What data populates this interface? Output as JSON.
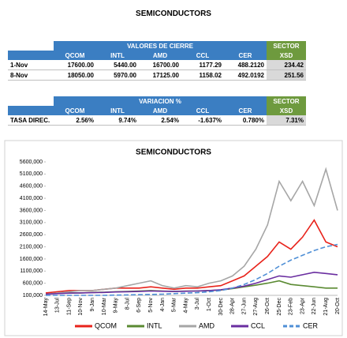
{
  "title": "SEMICONDUCTORS",
  "closing_table": {
    "caption": "VALORES DE CIERRE",
    "sector_caption": "SECTOR",
    "columns": [
      "QCOM",
      "INTL",
      "AMD",
      "CCL",
      "CER",
      "XSD"
    ],
    "rows": [
      [
        "1-Nov",
        "17600.00",
        "5440.00",
        "16700.00",
        "1177.29",
        "488.2120",
        "234.42"
      ],
      [
        "8-Nov",
        "18050.00",
        "5970.00",
        "17125.00",
        "1158.02",
        "492.0192",
        "251.56"
      ]
    ]
  },
  "variation_table": {
    "caption": "VARIACION %",
    "sector_caption": "SECTOR",
    "columns": [
      "QCOM",
      "INTL",
      "AMD",
      "CCL",
      "CER",
      "XSD"
    ],
    "rows": [
      [
        "TASA DIREC.",
        "2.56%",
        "9.74%",
        "2.54%",
        "-1.637%",
        "0.780%",
        "7.31%"
      ]
    ]
  },
  "chart_data": {
    "type": "line",
    "title": "SEMICONDUCTORS",
    "categories": [
      "14-May",
      "13-Jul",
      "11-Sep",
      "10-Nov",
      "9-Jan",
      "10-Mar",
      "9-May",
      "8-Jul",
      "6-Sep",
      "5-Nov",
      "4-Jan",
      "5-Mar",
      "4-May",
      "3-Jul",
      "1-Oct",
      "30-Dec",
      "28-Apr",
      "27-Jun",
      "27-Aug",
      "26-Oct",
      "25-Dec",
      "23-Feb",
      "23-Apr",
      "22-Jun",
      "21-Aug",
      "20-Oct"
    ],
    "series": [
      {
        "name": "QCOM",
        "color": "#e8231b",
        "values": [
          200000,
          250000,
          300000,
          300000,
          300000,
          350000,
          400000,
          400000,
          400000,
          450000,
          400000,
          350000,
          400000,
          400000,
          450000,
          500000,
          700000,
          900000,
          1300000,
          1700000,
          2300000,
          2000000,
          2500000,
          3200000,
          2300000,
          2100000
        ]
      },
      {
        "name": "INTL",
        "color": "#5a8a32",
        "values": [
          150000,
          180000,
          200000,
          200000,
          220000,
          230000,
          250000,
          260000,
          280000,
          300000,
          280000,
          260000,
          280000,
          280000,
          300000,
          320000,
          380000,
          450000,
          520000,
          600000,
          700000,
          550000,
          500000,
          450000,
          400000,
          400000
        ]
      },
      {
        "name": "AMD",
        "color": "#a6a6a6",
        "values": [
          150000,
          200000,
          250000,
          300000,
          300000,
          350000,
          400000,
          500000,
          600000,
          700000,
          500000,
          400000,
          500000,
          450000,
          600000,
          700000,
          900000,
          1300000,
          2000000,
          3000000,
          4800000,
          4000000,
          4800000,
          3800000,
          5300000,
          3600000
        ]
      },
      {
        "name": "CCL",
        "color": "#6a2ea0",
        "values": [
          150000,
          170000,
          190000,
          200000,
          210000,
          220000,
          240000,
          250000,
          260000,
          280000,
          270000,
          260000,
          270000,
          280000,
          300000,
          330000,
          400000,
          480000,
          600000,
          750000,
          900000,
          850000,
          950000,
          1050000,
          1000000,
          950000
        ]
      },
      {
        "name": "CER",
        "color": "#4f8fd6",
        "dashed": true,
        "values": [
          100000,
          100000,
          100000,
          100000,
          100000,
          100000,
          110000,
          120000,
          130000,
          140000,
          150000,
          170000,
          190000,
          210000,
          250000,
          300000,
          400000,
          550000,
          750000,
          1000000,
          1300000,
          1550000,
          1750000,
          1950000,
          2100000,
          2200000
        ]
      }
    ],
    "ylim": [
      100000,
      5600000
    ],
    "yticks": [
      {
        "value": 100000,
        "label": "100,000"
      },
      {
        "value": 600000,
        "label": "600,000"
      },
      {
        "value": 1100000,
        "label": "1100,000"
      },
      {
        "value": 1600000,
        "label": "1600,000"
      },
      {
        "value": 2100000,
        "label": "2100,000"
      },
      {
        "value": 2600000,
        "label": "2600,000"
      },
      {
        "value": 3100000,
        "label": "3100,000"
      },
      {
        "value": 3600000,
        "label": "3600,000"
      },
      {
        "value": 4100000,
        "label": "4100,000"
      },
      {
        "value": 4600000,
        "label": "4600,000"
      },
      {
        "value": 5100000,
        "label": "5100,000"
      },
      {
        "value": 5600000,
        "label": "5600,000"
      }
    ],
    "grid": false
  }
}
